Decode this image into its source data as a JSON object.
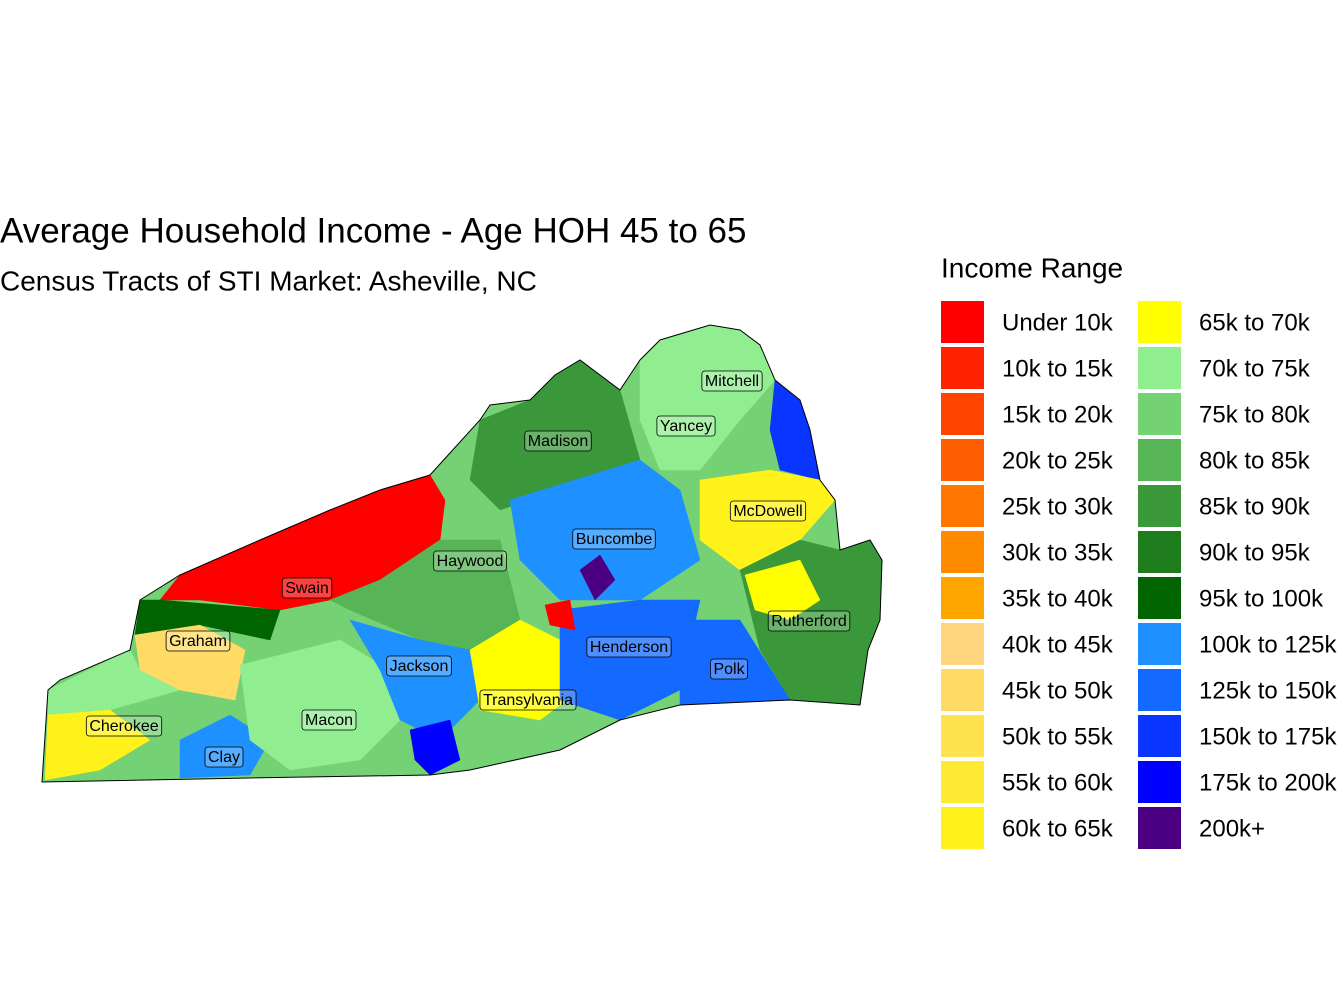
{
  "title": "Average Household Income - Age HOH 45 to 65",
  "subtitle": "Census Tracts of STI Market: Asheville, NC",
  "legend": {
    "title": "Income Range",
    "items": [
      {
        "label": "Under 10k",
        "color": "#ff0000"
      },
      {
        "label": "10k to 15k",
        "color": "#ff2200"
      },
      {
        "label": "15k to 20k",
        "color": "#ff4400"
      },
      {
        "label": "20k to 25k",
        "color": "#ff5f00"
      },
      {
        "label": "25k to 30k",
        "color": "#ff7700"
      },
      {
        "label": "30k to 35k",
        "color": "#ff8c00"
      },
      {
        "label": "35k to 40k",
        "color": "#ffa500"
      },
      {
        "label": "40k to 45k",
        "color": "#ffd580"
      },
      {
        "label": "45k to 50k",
        "color": "#ffdb66"
      },
      {
        "label": "50k to 55k",
        "color": "#ffe24d"
      },
      {
        "label": "55k to 60k",
        "color": "#ffea33"
      },
      {
        "label": "60k to 65k",
        "color": "#fff21a"
      },
      {
        "label": "65k to 70k",
        "color": "#ffff00"
      },
      {
        "label": "70k to 75k",
        "color": "#90ee90"
      },
      {
        "label": "75k to 80k",
        "color": "#74d174"
      },
      {
        "label": "80k to 85k",
        "color": "#57b557"
      },
      {
        "label": "85k to 90k",
        "color": "#3a983a"
      },
      {
        "label": "90k to 95k",
        "color": "#1e7c1e"
      },
      {
        "label": "95k to 100k",
        "color": "#006400"
      },
      {
        "label": "100k to 125k",
        "color": "#1e90ff"
      },
      {
        "label": "125k to 150k",
        "color": "#1469ff"
      },
      {
        "label": "150k to 175k",
        "color": "#0a35ff"
      },
      {
        "label": "175k to 200k",
        "color": "#0000ff"
      },
      {
        "label": "200k+",
        "color": "#4b0082"
      }
    ]
  },
  "counties": [
    "Mitchell",
    "Yancey",
    "Madison",
    "McDowell",
    "Buncombe",
    "Haywood",
    "Swain",
    "Rutherford",
    "Graham",
    "Henderson",
    "Jackson",
    "Polk",
    "Transylvania",
    "Macon",
    "Cherokee",
    "Clay"
  ]
}
